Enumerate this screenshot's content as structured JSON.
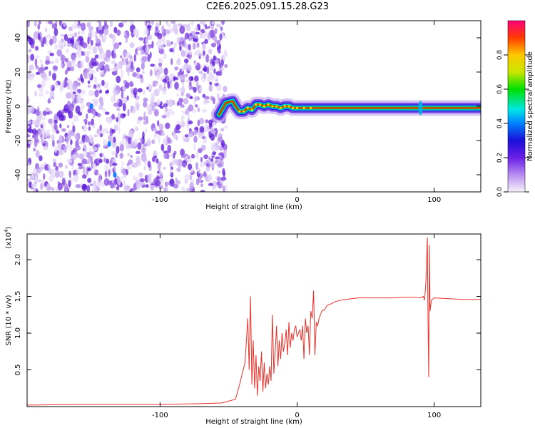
{
  "figure": {
    "title": "C2E6.2025.091.15.28.G23"
  },
  "chart_data": [
    {
      "type": "heatmap",
      "panel": "spectrogram",
      "title": "",
      "xlabel": "Height of straight line (km)",
      "ylabel": "Frequency (Hz)",
      "xlim": [
        -197,
        134
      ],
      "ylim": [
        -50,
        50
      ],
      "xticks": [
        -100,
        0,
        100
      ],
      "xtick_labels": [
        "-100",
        "0",
        "100"
      ],
      "yticks": [
        -40,
        -20,
        0,
        20,
        40
      ],
      "ytick_labels": [
        "-40",
        "-20",
        "0",
        "20",
        "40"
      ],
      "noise_region_x": [
        -197,
        -55
      ],
      "signal_track": {
        "x": [
          -57,
          -52,
          -47,
          -45,
          -42,
          -39,
          -36,
          -33,
          -30,
          -27,
          -24,
          -21,
          -18,
          -15,
          -12,
          -9,
          -6,
          -3,
          0,
          5,
          10,
          20,
          40,
          60,
          80,
          90,
          100,
          110,
          120,
          134
        ],
        "frequency": [
          -5,
          2,
          3,
          0,
          -3,
          -3,
          -1,
          -2,
          1,
          1,
          0,
          1,
          0,
          0,
          -1,
          0,
          0,
          -1,
          -1,
          -1,
          -1,
          -1,
          -1,
          -1,
          -1,
          -1,
          -1,
          -1,
          -1,
          -1
        ]
      },
      "colorbar": {
        "label": "Normalized spectral amplitude",
        "range": [
          0,
          1
        ],
        "ticks": [
          0.0,
          0.2,
          0.4,
          0.6,
          0.8
        ],
        "tick_labels": [
          "0.0",
          "0.2",
          "0.4",
          "0.6",
          "0.8"
        ],
        "colors": [
          "#f8f4fc",
          "#b88cf0",
          "#6a1ee6",
          "#1a10d8",
          "#0080ff",
          "#00e6e6",
          "#00e000",
          "#c8e600",
          "#ffc800",
          "#ff3c00",
          "#ff007a"
        ]
      }
    },
    {
      "type": "line",
      "panel": "snr",
      "title": "",
      "xlabel": "Height of straight line (km)",
      "ylabel": "SNR (10 * v/v)",
      "y_multiplier_label": "(x10",
      "y_multiplier_exponent": "4",
      "y_multiplier_close": ")",
      "xlim": [
        -197,
        134
      ],
      "ylim": [
        0,
        2.35
      ],
      "xticks": [
        -100,
        0,
        100
      ],
      "xtick_labels": [
        "-100",
        "0",
        "100"
      ],
      "yticks": [
        0.5,
        1.0,
        1.5,
        2.0
      ],
      "ytick_labels": [
        "0.5",
        "1.0",
        "1.5",
        "2.0"
      ],
      "color": "#e8312a",
      "series": [
        {
          "x": [
            -197,
            -150,
            -100,
            -70,
            -55,
            -45,
            -42,
            -38,
            -36,
            -35,
            -34,
            -33,
            -32,
            -31,
            -30,
            -29,
            -28,
            -27,
            -26,
            -25,
            -24,
            -23,
            -22,
            -21,
            -20,
            -19,
            -18,
            -17,
            -16,
            -15,
            -14,
            -13,
            -12,
            -11,
            -10,
            -9,
            -8,
            -7,
            -6,
            -5,
            -4,
            -3,
            -2,
            -1,
            0,
            1,
            2,
            3,
            4,
            5,
            6,
            7,
            8,
            9,
            10,
            11,
            12,
            13,
            14,
            15,
            16,
            17,
            18,
            20,
            22,
            25,
            28,
            32,
            36,
            40,
            45,
            50,
            60,
            70,
            80,
            85,
            90,
            92,
            93,
            94,
            95,
            95.5,
            96,
            96.5,
            97,
            98,
            100,
            110,
            120,
            134
          ],
          "y": [
            0.02,
            0.03,
            0.03,
            0.04,
            0.05,
            0.1,
            0.3,
            0.6,
            1.2,
            0.5,
            1.5,
            0.3,
            0.9,
            0.25,
            0.7,
            0.15,
            0.55,
            0.35,
            0.75,
            0.2,
            0.6,
            0.25,
            0.45,
            0.3,
            0.55,
            0.35,
            1.25,
            0.45,
            0.75,
            1.1,
            0.55,
            0.9,
            0.65,
            1.0,
            0.75,
            0.85,
            1.05,
            0.7,
            1.15,
            0.8,
            1.0,
            0.9,
            1.05,
            1.1,
            0.95,
            1.0,
            1.05,
            0.9,
            1.1,
            0.65,
            1.2,
            1.0,
            1.1,
            0.7,
            1.3,
            1.2,
            1.58,
            0.7,
            1.15,
            1.1,
            1.2,
            1.25,
            1.3,
            1.32,
            1.38,
            1.4,
            1.43,
            1.45,
            1.46,
            1.47,
            1.48,
            1.48,
            1.48,
            1.48,
            1.49,
            1.49,
            1.48,
            1.5,
            1.45,
            1.7,
            2.3,
            1.2,
            0.4,
            2.2,
            1.3,
            1.45,
            1.48,
            1.47,
            1.46,
            1.46
          ]
        }
      ]
    }
  ]
}
